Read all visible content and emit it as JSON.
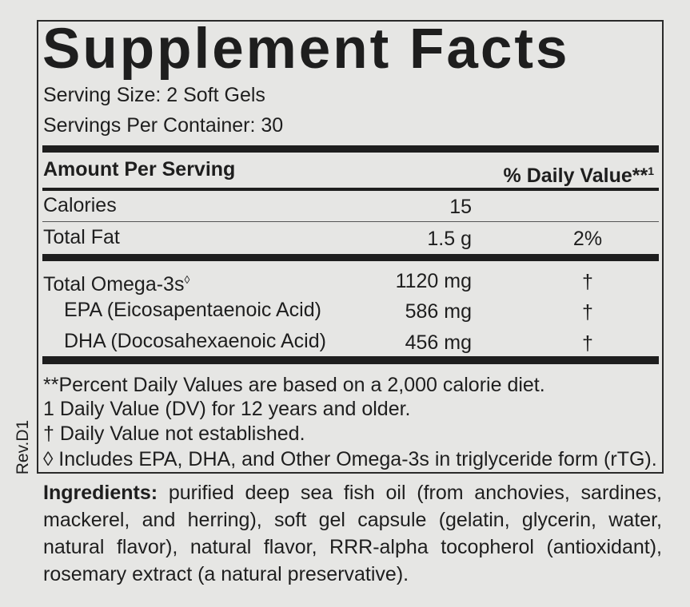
{
  "title": "Supplement Facts",
  "serving_size": "Serving Size: 2 Soft Gels",
  "servings_per_container": "Servings Per Container: 30",
  "table": {
    "header": {
      "amount": "Amount Per Serving",
      "daily_value": "% Daily Value**",
      "daily_value_sup": "1"
    },
    "rows": [
      {
        "name": "Calories",
        "amount": "15"
      },
      {
        "name": "Total Fat",
        "amount": "1.5 g",
        "dv": "2%"
      },
      {
        "name": "Total Omega-3s",
        "name_sup": "◊",
        "amount": "1120 mg",
        "dv": "†"
      },
      {
        "name": "EPA (Eicosapentaenoic Acid)",
        "amount": "586 mg",
        "dv": "†"
      },
      {
        "name": "DHA (Docosahexaenoic Acid)",
        "amount": "456 mg",
        "dv": "†"
      }
    ]
  },
  "footnotes": [
    "**Percent Daily Values are based on a 2,000 calorie diet.",
    "1 Daily Value (DV) for 12 years and older.",
    "† Daily Value not established.",
    "◊ Includes EPA, DHA, and Other Omega-3s in triglyceride form (rTG)."
  ],
  "side_label": "Rev.D1",
  "ingredients": {
    "label": "Ingredients:",
    "text": "purified deep sea fish oil (from anchovies, sardines, mackerel, and herring), soft gel capsule (gelatin, glycerin, water, natural flavor), natural flavor, RRR-alpha tocopherol (antioxidant), rosemary extract (a natural preservative)."
  }
}
